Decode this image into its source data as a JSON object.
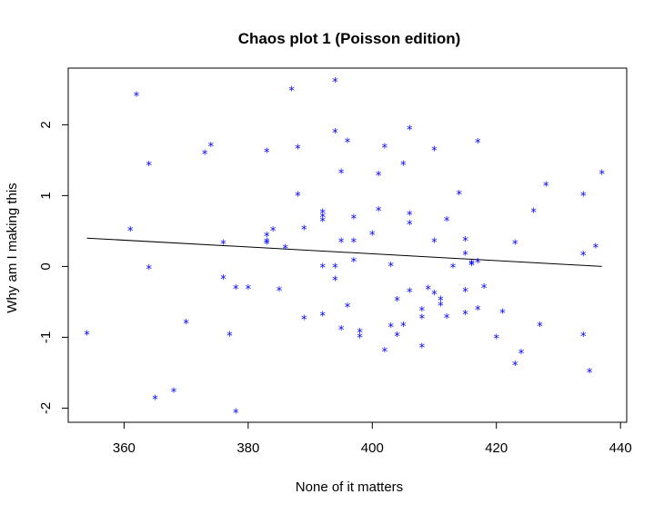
{
  "chart_data": {
    "type": "scatter",
    "title": "Chaos plot 1 (Poisson edition)",
    "xlabel": "None of it matters",
    "ylabel": "Why am I making this",
    "xlim": [
      351,
      441
    ],
    "ylim": [
      -2.2,
      2.8
    ],
    "xticks": [
      360,
      380,
      400,
      420,
      440
    ],
    "yticks": [
      -2,
      -1,
      0,
      1,
      2
    ],
    "x_tick_labels": [
      "360",
      "380",
      "400",
      "420",
      "440"
    ],
    "y_tick_labels": [
      "-2",
      "-1",
      "0",
      "1",
      "2"
    ],
    "marker": "*",
    "point_color": "#0000ff",
    "line_color": "#000000",
    "grid": false,
    "box": true,
    "trend_line": {
      "x": [
        354,
        437
      ],
      "y": [
        0.4,
        0.0
      ]
    },
    "points": [
      {
        "x": 354,
        "y": -0.95
      },
      {
        "x": 361,
        "y": 0.52
      },
      {
        "x": 362,
        "y": 2.42
      },
      {
        "x": 364,
        "y": 1.44
      },
      {
        "x": 364,
        "y": -0.02
      },
      {
        "x": 365,
        "y": -1.86
      },
      {
        "x": 368,
        "y": -1.76
      },
      {
        "x": 370,
        "y": -0.79
      },
      {
        "x": 373,
        "y": 1.6
      },
      {
        "x": 374,
        "y": 1.71
      },
      {
        "x": 376,
        "y": 0.33
      },
      {
        "x": 376,
        "y": -0.16
      },
      {
        "x": 377,
        "y": -0.96
      },
      {
        "x": 378,
        "y": -2.05
      },
      {
        "x": 378,
        "y": -0.3
      },
      {
        "x": 380,
        "y": -0.3
      },
      {
        "x": 383,
        "y": 1.63
      },
      {
        "x": 383,
        "y": 0.44
      },
      {
        "x": 383,
        "y": 0.36
      },
      {
        "x": 383,
        "y": 0.33
      },
      {
        "x": 384,
        "y": 0.52
      },
      {
        "x": 385,
        "y": -0.33
      },
      {
        "x": 386,
        "y": 0.27
      },
      {
        "x": 387,
        "y": 2.5
      },
      {
        "x": 388,
        "y": 1.68
      },
      {
        "x": 388,
        "y": 1.01
      },
      {
        "x": 389,
        "y": 0.54
      },
      {
        "x": 389,
        "y": -0.73
      },
      {
        "x": 392,
        "y": 0.77
      },
      {
        "x": 392,
        "y": 0.71
      },
      {
        "x": 392,
        "y": 0.65
      },
      {
        "x": 392,
        "y": 0.0
      },
      {
        "x": 392,
        "y": -0.68
      },
      {
        "x": 394,
        "y": 2.62
      },
      {
        "x": 394,
        "y": 1.9
      },
      {
        "x": 394,
        "y": 0.0
      },
      {
        "x": 394,
        "y": -0.18
      },
      {
        "x": 395,
        "y": 1.33
      },
      {
        "x": 395,
        "y": 0.36
      },
      {
        "x": 395,
        "y": -0.88
      },
      {
        "x": 396,
        "y": 1.77
      },
      {
        "x": 396,
        "y": -0.56
      },
      {
        "x": 397,
        "y": 0.69
      },
      {
        "x": 397,
        "y": 0.36
      },
      {
        "x": 397,
        "y": 0.08
      },
      {
        "x": 398,
        "y": -0.92
      },
      {
        "x": 398,
        "y": -0.99
      },
      {
        "x": 400,
        "y": 0.46
      },
      {
        "x": 401,
        "y": 1.3
      },
      {
        "x": 401,
        "y": 0.8
      },
      {
        "x": 402,
        "y": 1.69
      },
      {
        "x": 402,
        "y": -1.19
      },
      {
        "x": 403,
        "y": 0.02
      },
      {
        "x": 403,
        "y": -0.84
      },
      {
        "x": 404,
        "y": -0.47
      },
      {
        "x": 404,
        "y": -0.97
      },
      {
        "x": 405,
        "y": 1.45
      },
      {
        "x": 405,
        "y": -0.83
      },
      {
        "x": 406,
        "y": 1.95
      },
      {
        "x": 406,
        "y": 0.74
      },
      {
        "x": 406,
        "y": 0.61
      },
      {
        "x": 406,
        "y": -0.35
      },
      {
        "x": 408,
        "y": -0.61
      },
      {
        "x": 408,
        "y": -0.72
      },
      {
        "x": 408,
        "y": -1.13
      },
      {
        "x": 409,
        "y": -0.31
      },
      {
        "x": 410,
        "y": 1.65
      },
      {
        "x": 410,
        "y": 0.36
      },
      {
        "x": 410,
        "y": -0.38
      },
      {
        "x": 411,
        "y": -0.46
      },
      {
        "x": 411,
        "y": -0.54
      },
      {
        "x": 412,
        "y": 0.66
      },
      {
        "x": 412,
        "y": -0.71
      },
      {
        "x": 413,
        "y": 0.0
      },
      {
        "x": 414,
        "y": 1.03
      },
      {
        "x": 415,
        "y": 0.38
      },
      {
        "x": 415,
        "y": 0.18
      },
      {
        "x": 415,
        "y": -0.34
      },
      {
        "x": 415,
        "y": -0.66
      },
      {
        "x": 416,
        "y": 0.05
      },
      {
        "x": 416,
        "y": 0.03
      },
      {
        "x": 417,
        "y": 1.76
      },
      {
        "x": 417,
        "y": 0.07
      },
      {
        "x": 417,
        "y": -0.6
      },
      {
        "x": 418,
        "y": -0.29
      },
      {
        "x": 420,
        "y": -1.0
      },
      {
        "x": 421,
        "y": -0.64
      },
      {
        "x": 423,
        "y": 0.33
      },
      {
        "x": 423,
        "y": -1.38
      },
      {
        "x": 424,
        "y": -1.21
      },
      {
        "x": 426,
        "y": 0.78
      },
      {
        "x": 427,
        "y": -0.83
      },
      {
        "x": 428,
        "y": 1.15
      },
      {
        "x": 434,
        "y": 1.01
      },
      {
        "x": 434,
        "y": 0.17
      },
      {
        "x": 434,
        "y": -0.97
      },
      {
        "x": 435,
        "y": -1.48
      },
      {
        "x": 436,
        "y": 0.28
      },
      {
        "x": 437,
        "y": 1.32
      }
    ]
  }
}
